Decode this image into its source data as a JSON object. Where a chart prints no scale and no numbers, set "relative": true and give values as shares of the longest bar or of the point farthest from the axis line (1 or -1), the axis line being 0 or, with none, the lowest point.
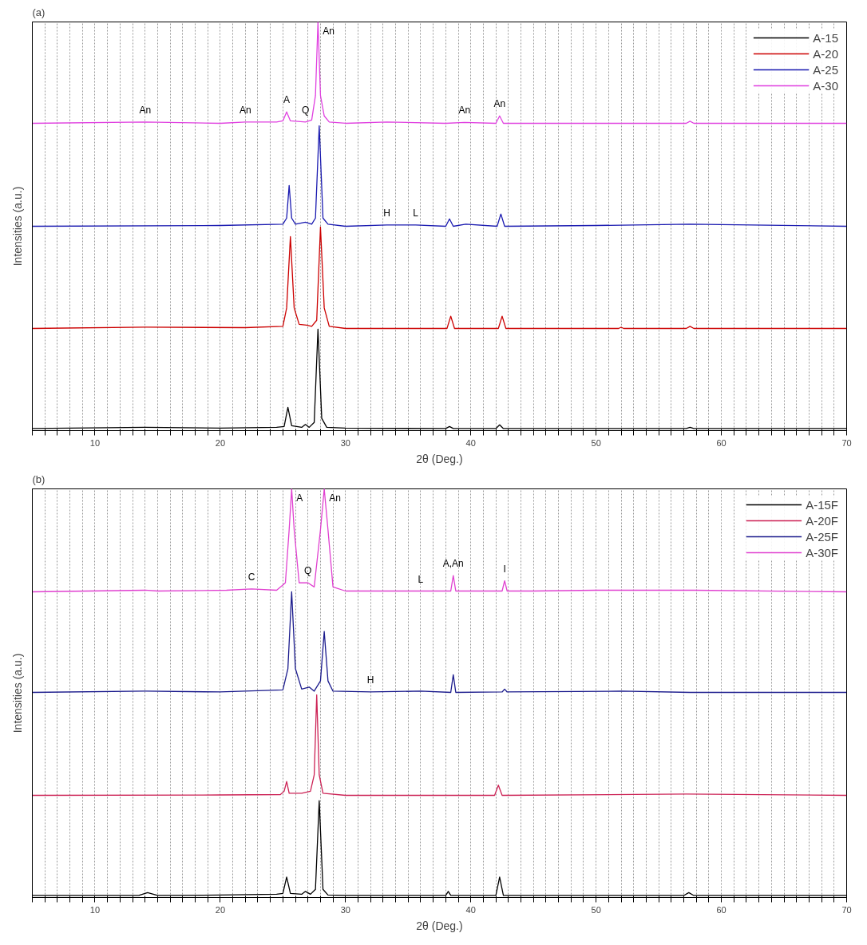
{
  "chart_data": [
    {
      "type": "line",
      "title": "(a)",
      "xlabel": "2θ (Deg.)",
      "ylabel": "Intensities (a.u.)",
      "relative": true,
      "xlim": [
        5,
        70
      ],
      "xticks": [
        {
          "value": 5,
          "label": null
        },
        {
          "value": 6,
          "label": null
        },
        {
          "value": 7,
          "label": null
        },
        {
          "value": 8,
          "label": null
        },
        {
          "value": 9,
          "label": null
        },
        10,
        {
          "value": 11,
          "label": null
        },
        {
          "value": 12,
          "label": null
        },
        {
          "value": 13,
          "label": null
        },
        {
          "value": 14,
          "label": null
        },
        {
          "value": 15,
          "label": null
        },
        {
          "value": 16,
          "label": null
        },
        {
          "value": 17,
          "label": null
        },
        {
          "value": 18,
          "label": null
        },
        {
          "value": 19,
          "label": null
        },
        20,
        {
          "value": 21,
          "label": null
        },
        {
          "value": 22,
          "label": null
        },
        {
          "value": 23,
          "label": null
        },
        {
          "value": 24,
          "label": null
        },
        {
          "value": 25,
          "label": null
        },
        {
          "value": 26,
          "label": null
        },
        {
          "value": 27,
          "label": null
        },
        {
          "value": 28,
          "label": null
        },
        {
          "value": 29,
          "label": null
        },
        30,
        {
          "value": 31,
          "label": null
        },
        {
          "value": 32,
          "label": null
        },
        {
          "value": 33,
          "label": null
        },
        {
          "value": 34,
          "label": null
        },
        {
          "value": 35,
          "label": null
        },
        {
          "value": 36,
          "label": null
        },
        {
          "value": 37,
          "label": null
        },
        {
          "value": 38,
          "label": null
        },
        {
          "value": 39,
          "label": null
        },
        40,
        {
          "value": 41,
          "label": null
        },
        {
          "value": 42,
          "label": null
        },
        {
          "value": 43,
          "label": null
        },
        {
          "value": 44,
          "label": null
        },
        {
          "value": 45,
          "label": null
        },
        {
          "value": 46,
          "label": null
        },
        {
          "value": 47,
          "label": null
        },
        {
          "value": 48,
          "label": null
        },
        {
          "value": 49,
          "label": null
        },
        50,
        {
          "value": 51,
          "label": null
        },
        {
          "value": 52,
          "label": null
        },
        {
          "value": 53,
          "label": null
        },
        {
          "value": 54,
          "label": null
        },
        {
          "value": 55,
          "label": null
        },
        {
          "value": 56,
          "label": null
        },
        {
          "value": 57,
          "label": null
        },
        {
          "value": 58,
          "label": null
        },
        {
          "value": 59,
          "label": null
        },
        60,
        {
          "value": 61,
          "label": null
        },
        {
          "value": 62,
          "label": null
        },
        {
          "value": 63,
          "label": null
        },
        {
          "value": 64,
          "label": null
        },
        {
          "value": 65,
          "label": null
        },
        {
          "value": 66,
          "label": null
        },
        {
          "value": 67,
          "label": null
        },
        {
          "value": 68,
          "label": null
        },
        {
          "value": 69,
          "label": null
        },
        70
      ],
      "grid": "x",
      "legend": "top right",
      "series": [
        {
          "name": "A-15",
          "color": "#000000",
          "x": [
            5,
            14,
            20,
            24.5,
            25.1,
            25.4,
            25.7,
            26.5,
            26.8,
            27.1,
            27.5,
            27.8,
            28.1,
            28.5,
            30,
            38,
            38.3,
            38.6,
            42,
            42.3,
            42.6,
            57.2,
            57.5,
            57.8,
            70
          ],
          "values": [
            0.005,
            0.008,
            0.006,
            0.008,
            0.01,
            0.057,
            0.012,
            0.008,
            0.015,
            0.008,
            0.02,
            0.248,
            0.03,
            0.008,
            0.006,
            0.005,
            0.01,
            0.005,
            0.005,
            0.014,
            0.005,
            0.005,
            0.008,
            0.005,
            0.005
          ]
        },
        {
          "name": "A-20",
          "color": "#cc0000",
          "x": [
            5,
            14,
            22,
            25,
            25.3,
            25.6,
            25.9,
            26.3,
            26.9,
            27.3,
            27.7,
            28.0,
            28.3,
            28.7,
            30,
            38.1,
            38.4,
            38.7,
            42.2,
            42.5,
            42.8,
            51.8,
            52,
            52.2,
            57.2,
            57.5,
            57.8,
            70
          ],
          "values": [
            0.25,
            0.253,
            0.252,
            0.255,
            0.3,
            0.475,
            0.3,
            0.26,
            0.258,
            0.255,
            0.27,
            0.498,
            0.3,
            0.255,
            0.25,
            0.25,
            0.28,
            0.25,
            0.25,
            0.28,
            0.25,
            0.25,
            0.253,
            0.25,
            0.25,
            0.255,
            0.25,
            0.25
          ]
        },
        {
          "name": "A-25",
          "color": "#1a1ab0",
          "x": [
            5,
            20,
            25,
            25.3,
            25.5,
            25.7,
            26,
            26.8,
            27.3,
            27.6,
            27.9,
            28.2,
            28.6,
            30,
            33.3,
            35.6,
            38,
            38.3,
            38.6,
            39.6,
            42.1,
            42.4,
            42.7,
            50,
            57.5,
            70
          ],
          "values": [
            0.5,
            0.502,
            0.505,
            0.52,
            0.6,
            0.52,
            0.505,
            0.51,
            0.505,
            0.52,
            0.746,
            0.52,
            0.505,
            0.5,
            0.503,
            0.503,
            0.5,
            0.518,
            0.5,
            0.505,
            0.5,
            0.53,
            0.5,
            0.502,
            0.505,
            0.5
          ]
        },
        {
          "name": "A-30",
          "color": "#e040e0",
          "x": [
            5,
            14,
            20,
            22,
            24.5,
            25.0,
            25.3,
            25.6,
            26.8,
            27.3,
            27.6,
            27.8,
            28.0,
            28.3,
            28.7,
            30,
            33.3,
            38,
            39.5,
            42.0,
            42.3,
            42.6,
            57.2,
            57.5,
            57.8,
            70
          ],
          "values": [
            0.752,
            0.755,
            0.752,
            0.755,
            0.755,
            0.758,
            0.78,
            0.758,
            0.755,
            0.76,
            0.82,
            1,
            0.82,
            0.77,
            0.755,
            0.752,
            0.755,
            0.752,
            0.754,
            0.752,
            0.77,
            0.752,
            0.752,
            0.757,
            0.752,
            0.752
          ]
        }
      ],
      "annotations": [
        {
          "text": "An",
          "x": 14,
          "y": 0.755
        },
        {
          "text": "An",
          "x": 22,
          "y": 0.755
        },
        {
          "text": "A",
          "x": 25.3,
          "y": 0.78
        },
        {
          "text": "Q",
          "x": 26.8,
          "y": 0.755
        },
        {
          "text": "An",
          "x": 27.8,
          "y": 1
        },
        {
          "text": "An",
          "x": 39.5,
          "y": 0.754
        },
        {
          "text": "An",
          "x": 42.3,
          "y": 0.77
        },
        {
          "text": "H",
          "x": 33.3,
          "y": 0.503
        },
        {
          "text": "L",
          "x": 35.6,
          "y": 0.503
        }
      ]
    },
    {
      "type": "line",
      "title": "(b)",
      "xlabel": "2θ (Deg.)",
      "ylabel": "Intensities (a.u.)",
      "relative": true,
      "xlim": [
        5,
        70
      ],
      "xticks": [
        {
          "value": 5,
          "label": null
        },
        {
          "value": 6,
          "label": null
        },
        {
          "value": 7,
          "label": null
        },
        {
          "value": 8,
          "label": null
        },
        {
          "value": 9,
          "label": null
        },
        10,
        {
          "value": 11,
          "label": null
        },
        {
          "value": 12,
          "label": null
        },
        {
          "value": 13,
          "label": null
        },
        {
          "value": 14,
          "label": null
        },
        {
          "value": 15,
          "label": null
        },
        {
          "value": 16,
          "label": null
        },
        {
          "value": 17,
          "label": null
        },
        {
          "value": 18,
          "label": null
        },
        {
          "value": 19,
          "label": null
        },
        20,
        {
          "value": 21,
          "label": null
        },
        {
          "value": 22,
          "label": null
        },
        {
          "value": 23,
          "label": null
        },
        {
          "value": 24,
          "label": null
        },
        {
          "value": 25,
          "label": null
        },
        {
          "value": 26,
          "label": null
        },
        {
          "value": 27,
          "label": null
        },
        {
          "value": 28,
          "label": null
        },
        {
          "value": 29,
          "label": null
        },
        30,
        {
          "value": 31,
          "label": null
        },
        {
          "value": 32,
          "label": null
        },
        {
          "value": 33,
          "label": null
        },
        {
          "value": 34,
          "label": null
        },
        {
          "value": 35,
          "label": null
        },
        {
          "value": 36,
          "label": null
        },
        {
          "value": 37,
          "label": null
        },
        {
          "value": 38,
          "label": null
        },
        {
          "value": 39,
          "label": null
        },
        40,
        {
          "value": 41,
          "label": null
        },
        {
          "value": 42,
          "label": null
        },
        {
          "value": 43,
          "label": null
        },
        {
          "value": 44,
          "label": null
        },
        {
          "value": 45,
          "label": null
        },
        {
          "value": 46,
          "label": null
        },
        {
          "value": 47,
          "label": null
        },
        {
          "value": 48,
          "label": null
        },
        {
          "value": 49,
          "label": null
        },
        50,
        {
          "value": 51,
          "label": null
        },
        {
          "value": 52,
          "label": null
        },
        {
          "value": 53,
          "label": null
        },
        {
          "value": 54,
          "label": null
        },
        {
          "value": 55,
          "label": null
        },
        {
          "value": 56,
          "label": null
        },
        {
          "value": 57,
          "label": null
        },
        {
          "value": 58,
          "label": null
        },
        {
          "value": 59,
          "label": null
        },
        60,
        {
          "value": 61,
          "label": null
        },
        {
          "value": 62,
          "label": null
        },
        {
          "value": 63,
          "label": null
        },
        {
          "value": 64,
          "label": null
        },
        {
          "value": 65,
          "label": null
        },
        {
          "value": 66,
          "label": null
        },
        {
          "value": 67,
          "label": null
        },
        {
          "value": 68,
          "label": null
        },
        {
          "value": 69,
          "label": null
        },
        70
      ],
      "grid": "x",
      "legend": "top right",
      "series": [
        {
          "name": "A-15F",
          "color": "#000000",
          "x": [
            5,
            13.5,
            14.2,
            15,
            20,
            24.5,
            25,
            25.3,
            25.6,
            26.5,
            26.8,
            27.2,
            27.6,
            27.9,
            28.2,
            28.6,
            30,
            38,
            38.2,
            38.4,
            42,
            42.3,
            42.6,
            57,
            57.4,
            57.8,
            70
          ],
          "values": [
            0.005,
            0.005,
            0.012,
            0.005,
            0.006,
            0.008,
            0.01,
            0.05,
            0.01,
            0.008,
            0.015,
            0.008,
            0.02,
            0.237,
            0.02,
            0.006,
            0.005,
            0.005,
            0.015,
            0.005,
            0.005,
            0.05,
            0.005,
            0.005,
            0.012,
            0.005,
            0.005
          ]
        },
        {
          "name": "A-20F",
          "color": "#cc2255",
          "x": [
            5,
            20,
            24.8,
            25.1,
            25.3,
            25.5,
            26.5,
            27.2,
            27.5,
            27.7,
            27.9,
            28.2,
            30,
            41.9,
            42.2,
            42.5,
            57.2,
            70
          ],
          "values": [
            0.25,
            0.251,
            0.252,
            0.26,
            0.284,
            0.255,
            0.255,
            0.26,
            0.3,
            0.496,
            0.3,
            0.255,
            0.25,
            0.25,
            0.275,
            0.25,
            0.253,
            0.25
          ]
        },
        {
          "name": "A-25F",
          "color": "#1a1a8c",
          "x": [
            5,
            14,
            20,
            25,
            25.4,
            25.7,
            26,
            26.5,
            27.1,
            27.5,
            28,
            28.3,
            28.6,
            29,
            32,
            36,
            38.4,
            38.6,
            38.8,
            42.5,
            42.7,
            42.9,
            52,
            57.5,
            70
          ],
          "values": [
            0.502,
            0.505,
            0.503,
            0.508,
            0.56,
            0.748,
            0.56,
            0.51,
            0.515,
            0.505,
            0.53,
            0.651,
            0.53,
            0.505,
            0.503,
            0.505,
            0.502,
            0.545,
            0.502,
            0.503,
            0.51,
            0.503,
            0.505,
            0.502,
            0.502
          ]
        },
        {
          "name": "A-30F",
          "color": "#e040d0",
          "x": [
            5,
            14,
            15,
            20.5,
            22.5,
            24.5,
            25.2,
            25.5,
            25.7,
            25.9,
            26.3,
            27,
            27.5,
            28,
            28.3,
            28.6,
            29,
            30,
            36,
            38.4,
            38.6,
            38.8,
            42.5,
            42.7,
            42.9,
            45,
            50,
            52,
            57.8,
            70
          ],
          "values": [
            0.748,
            0.752,
            0.75,
            0.752,
            0.755,
            0.752,
            0.77,
            0.9,
            1,
            0.9,
            0.77,
            0.77,
            0.76,
            0.9,
            1,
            0.9,
            0.76,
            0.75,
            0.75,
            0.75,
            0.788,
            0.75,
            0.75,
            0.775,
            0.75,
            0.75,
            0.752,
            0.752,
            0.752,
            0.748
          ]
        }
      ],
      "annotations": [
        {
          "text": "A",
          "x": 25.7,
          "y": 1
        },
        {
          "text": "An",
          "x": 28.3,
          "y": 1
        },
        {
          "text": "C",
          "x": 22.5,
          "y": 0.755
        },
        {
          "text": "Q",
          "x": 27,
          "y": 0.77
        },
        {
          "text": "L",
          "x": 36,
          "y": 0.75
        },
        {
          "text": "A,An",
          "x": 38.6,
          "y": 0.788
        },
        {
          "text": "I",
          "x": 42.7,
          "y": 0.775
        },
        {
          "text": "H",
          "x": 32,
          "y": 0.503
        }
      ]
    }
  ]
}
